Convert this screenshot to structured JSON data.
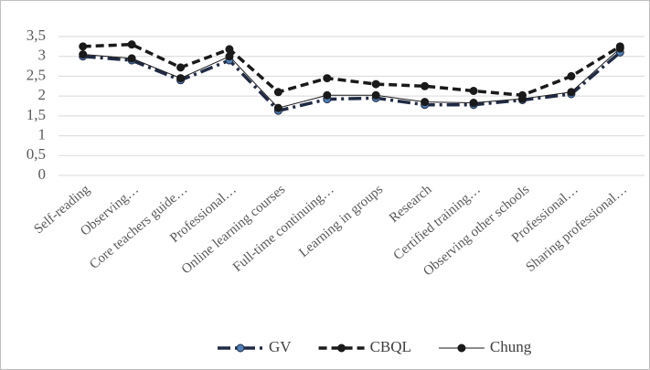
{
  "chart_data": {
    "type": "line",
    "categories": [
      "Self-reading",
      "Observing…",
      "Core teachers guide…",
      "Professional…",
      "Online learning courses",
      "Full-time continuing…",
      "Learning in groups",
      "Research",
      "Certified training…",
      "Observing other schools",
      "Professional…",
      "Sharing professional…"
    ],
    "series": [
      {
        "name": "GV",
        "color": "#1f2a44",
        "marker_color": "#4f7fb8",
        "line_style": "dash-dot",
        "values": [
          3.0,
          2.9,
          2.4,
          2.9,
          1.63,
          1.92,
          1.95,
          1.78,
          1.78,
          1.9,
          2.05,
          3.1
        ]
      },
      {
        "name": "CBQL",
        "color": "#1a1a1a",
        "marker_color": "#1a1a1a",
        "line_style": "dash",
        "values": [
          3.25,
          3.3,
          2.72,
          3.18,
          2.1,
          2.45,
          2.3,
          2.25,
          2.13,
          2.02,
          2.5,
          3.25
        ]
      },
      {
        "name": "Chung",
        "color": "#1a1a1a",
        "marker_color": "#1a1a1a",
        "line_style": "solid",
        "values": [
          3.05,
          2.95,
          2.45,
          3.0,
          1.7,
          2.02,
          2.02,
          1.85,
          1.83,
          1.93,
          2.1,
          3.2
        ]
      }
    ],
    "ylim": [
      0,
      3.5
    ],
    "yticks": [
      0,
      {
        "value": 0.5,
        "label": "0,5"
      },
      1,
      {
        "value": 1.5,
        "label": "1,5"
      },
      2,
      {
        "value": 2.5,
        "label": "2,5"
      },
      3,
      {
        "value": 3.5,
        "label": "3,5"
      }
    ],
    "grid": true,
    "legend": "bottom"
  }
}
